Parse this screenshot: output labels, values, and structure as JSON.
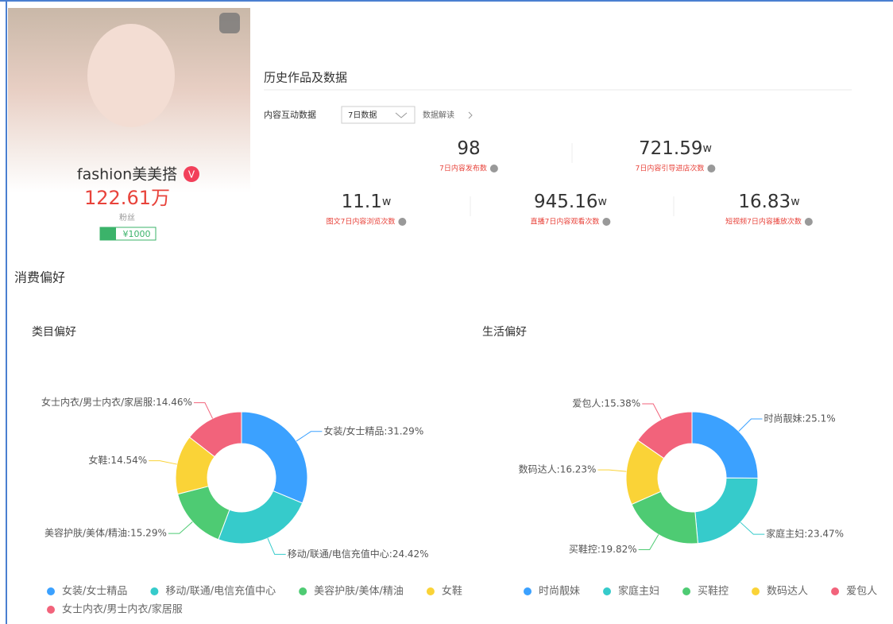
{
  "profile": {
    "name": "fashion美美搭",
    "fans": "122.61万",
    "fans_label": "粉丝",
    "price": "¥1000"
  },
  "history": {
    "title": "历史作品及数据",
    "filter_label": "内容互动数据",
    "dropdown": "7日数据",
    "explain": "数据解读",
    "stats": [
      {
        "value": "98",
        "unit": "",
        "label": "7日内容发布数"
      },
      {
        "value": "721.59",
        "unit": "w",
        "label": "7日内容引导进店次数"
      },
      {
        "value": "11.1",
        "unit": "w",
        "label": "图文7日内容浏览次数"
      },
      {
        "value": "945.16",
        "unit": "w",
        "label": "直播7日内容观看次数"
      },
      {
        "value": "16.83",
        "unit": "w",
        "label": "短视频7日内容播放次数"
      }
    ]
  },
  "section_title": "消费偏好",
  "chart_data": [
    {
      "type": "pie",
      "title": "类目偏好",
      "categories": [
        "女装/女士精品",
        "移动/联通/电信充值中心",
        "美容护肤/美体/精油",
        "女鞋",
        "女士内衣/男士内衣/家居服"
      ],
      "values": [
        31.29,
        24.42,
        15.29,
        14.54,
        14.46
      ],
      "value_labels": [
        "女装/女士精品:31.29%",
        "移动/联通/电信充值中心:24.42%",
        "美容护肤/美体/精油:15.29%",
        "女鞋:14.54%",
        "女士内衣/男士内衣/家居服:14.46%"
      ],
      "colors": [
        "#3ba1ff",
        "#36cbcb",
        "#4ecb73",
        "#fad337",
        "#f2637b"
      ]
    },
    {
      "type": "pie",
      "title": "生活偏好",
      "categories": [
        "时尚靓妹",
        "家庭主妇",
        "买鞋控",
        "数码达人",
        "爱包人"
      ],
      "values": [
        25.1,
        23.47,
        19.82,
        16.23,
        15.38
      ],
      "value_labels": [
        "时尚靓妹:25.1%",
        "家庭主妇:23.47%",
        "买鞋控:19.82%",
        "数码达人:16.23%",
        "爱包人:15.38%"
      ],
      "colors": [
        "#3ba1ff",
        "#36cbcb",
        "#4ecb73",
        "#fad337",
        "#f2637b"
      ]
    }
  ]
}
